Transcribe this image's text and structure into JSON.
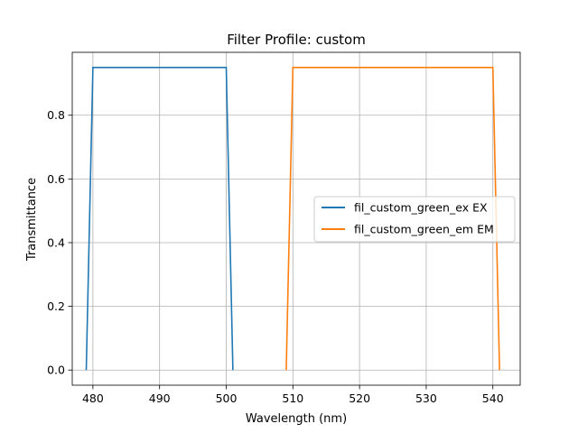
{
  "chart_data": {
    "type": "line",
    "title": "Filter Profile: custom",
    "xlabel": "Wavelength (nm)",
    "ylabel": "Transmittance",
    "xlim": [
      476.9,
      544.1
    ],
    "ylim": [
      -0.0475,
      0.9975
    ],
    "xticks": [
      480,
      490,
      500,
      510,
      520,
      530,
      540
    ],
    "yticks": [
      0.0,
      0.2,
      0.4,
      0.6,
      0.8
    ],
    "ytick_labels": [
      "0.0",
      "0.2",
      "0.4",
      "0.6",
      "0.8"
    ],
    "grid": true,
    "legend_position": "center-right",
    "series": [
      {
        "name": "fil_custom_green_ex EX",
        "color": "#1f77b4",
        "x": [
          479,
          480,
          500,
          501
        ],
        "y": [
          0,
          0.95,
          0.95,
          0
        ]
      },
      {
        "name": "fil_custom_green_em EM",
        "color": "#ff7f0e",
        "x": [
          509,
          510,
          540,
          541
        ],
        "y": [
          0,
          0.95,
          0.95,
          0
        ]
      }
    ]
  }
}
